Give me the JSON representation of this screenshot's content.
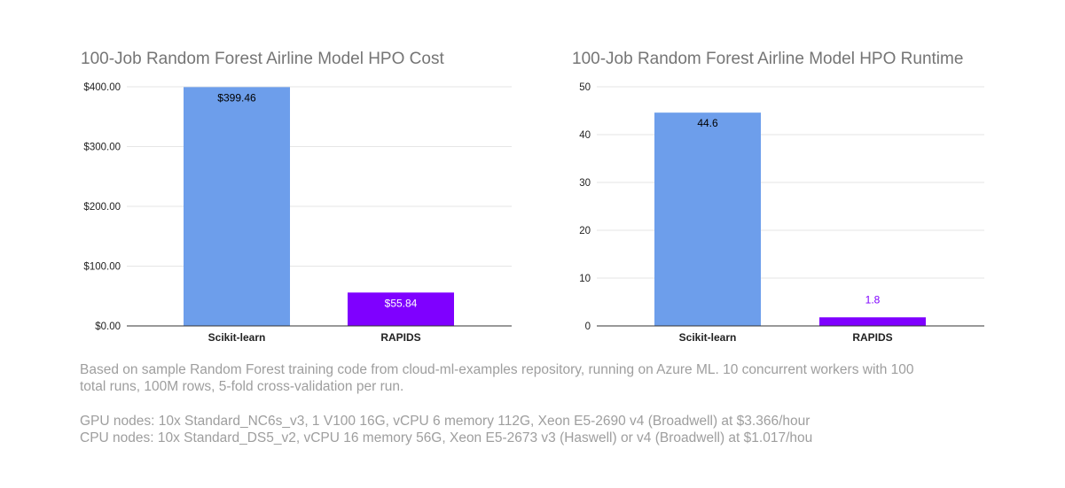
{
  "chart_data": [
    {
      "type": "bar",
      "title": "100-Job Random Forest Airline Model HPO Cost",
      "categories": [
        "Scikit-learn",
        "RAPIDS"
      ],
      "values": [
        399.46,
        55.84
      ],
      "value_labels": [
        "$399.46",
        "$55.84"
      ],
      "bar_colors": [
        "#6d9eeb",
        "#7f00ff"
      ],
      "value_label_colors": [
        "#000000",
        "#ffffff"
      ],
      "ylim": [
        0,
        400
      ],
      "yticks": [
        0,
        100,
        200,
        300,
        400
      ],
      "ytick_labels": [
        "$0.00",
        "$100.00",
        "$200.00",
        "$300.00",
        "$400.00"
      ],
      "xlabel": "",
      "ylabel": "",
      "grid": true
    },
    {
      "type": "bar",
      "title": "100-Job Random Forest Airline Model HPO Runtime",
      "categories": [
        "Scikit-learn",
        "RAPIDS"
      ],
      "values": [
        44.6,
        1.8
      ],
      "value_labels": [
        "44.6",
        "1.8"
      ],
      "bar_colors": [
        "#6d9eeb",
        "#7f00ff"
      ],
      "value_label_colors": [
        "#000000",
        "#7f00ff"
      ],
      "ylim": [
        0,
        50
      ],
      "yticks": [
        0,
        10,
        20,
        30,
        40,
        50
      ],
      "ytick_labels": [
        "0",
        "10",
        "20",
        "30",
        "40",
        "50"
      ],
      "xlabel": "",
      "ylabel": "",
      "grid": true
    }
  ],
  "footnotes": {
    "line1": "Based on sample Random Forest training code from cloud-ml-examples repository, running on Azure ML. 10 concurrent workers with 100",
    "line2": "total runs, 100M rows, 5-fold cross-validation per run.",
    "gpu": "GPU nodes: 10x Standard_NC6s_v3, 1 V100 16G, vCPU 6 memory 112G, Xeon E5-2690 v4 (Broadwell) at $3.366/hour",
    "cpu": "CPU nodes: 10x Standard_DS5_v2, vCPU 16 memory 56G, Xeon E5-2673 v3 (Haswell) or v4 (Broadwell) at $1.017/hou"
  }
}
